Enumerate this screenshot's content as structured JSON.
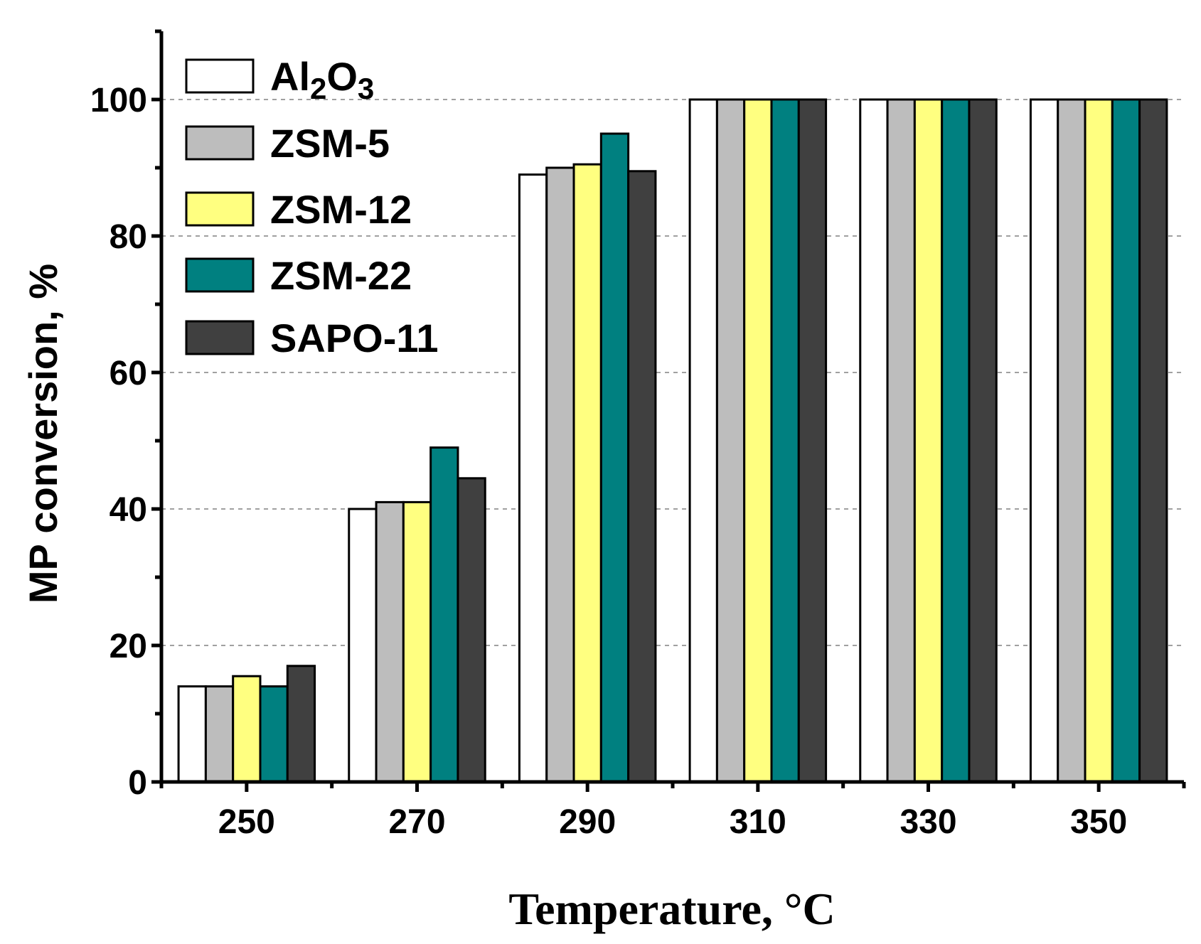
{
  "chart_data": {
    "type": "bar",
    "title": "",
    "xlabel": "Temperature, °C",
    "ylabel": "MP conversion, %",
    "categories": [
      "250",
      "270",
      "290",
      "310",
      "330",
      "350"
    ],
    "ylim": [
      0,
      110
    ],
    "yticks": [
      0,
      20,
      40,
      60,
      80,
      100
    ],
    "grid": "horizontal dashed at major ticks",
    "legend_position": "top-left",
    "series": [
      {
        "name": "Al2O3",
        "label_main": "Al",
        "label_sub1": "2",
        "label_mid": "O",
        "label_sub2": "3",
        "color": "#ffffff",
        "values": [
          14,
          40,
          89,
          100,
          100,
          100
        ]
      },
      {
        "name": "ZSM-5",
        "color": "#bdbdbd",
        "values": [
          14,
          41,
          90,
          100,
          100,
          100
        ]
      },
      {
        "name": "ZSM-12",
        "color": "#ffff80",
        "values": [
          15.5,
          41,
          90.5,
          100,
          100,
          100
        ]
      },
      {
        "name": "ZSM-22",
        "color": "#008080",
        "values": [
          14,
          49,
          95,
          100,
          100,
          100
        ]
      },
      {
        "name": "SAPO-11",
        "color": "#404040",
        "values": [
          17,
          44.5,
          89.5,
          100,
          100,
          100
        ]
      }
    ]
  }
}
